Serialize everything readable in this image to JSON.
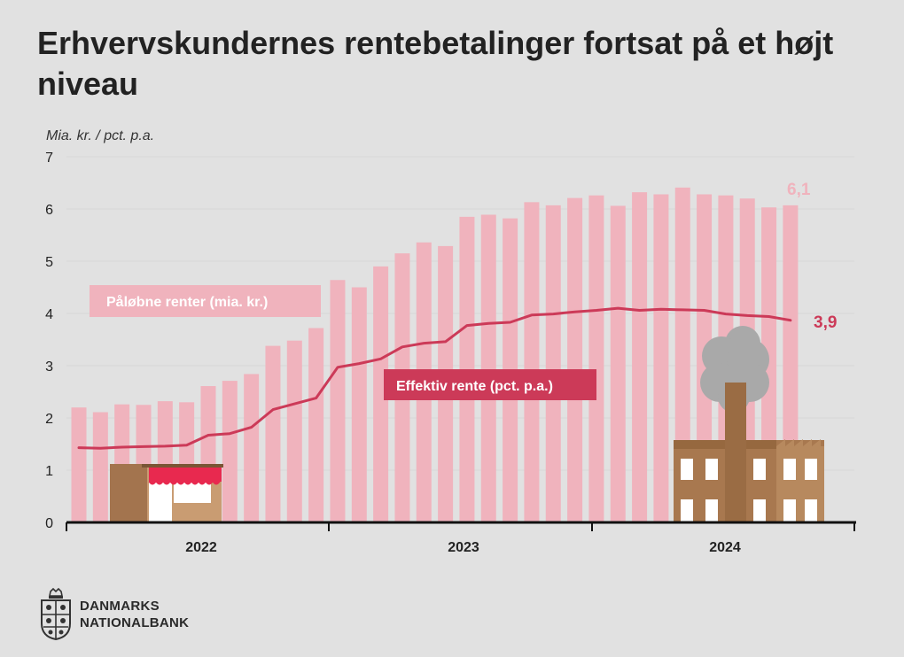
{
  "title": "Erhvervskundernes rentebetalinger fortsat på et højt niveau",
  "chart_data": {
    "type": "bar",
    "title": "Erhvervskundernes rentebetalinger fortsat på et højt niveau",
    "ylabel": "Mia. kr. / pct. p.a.",
    "ylim": [
      0,
      7
    ],
    "yticks": [
      "0",
      "1",
      "2",
      "3",
      "4",
      "5",
      "6",
      "7"
    ],
    "year_labels": [
      "2022",
      "2023",
      "2024"
    ],
    "months_count": 34,
    "series": [
      {
        "name": "Påløbne renter (mia. kr.)",
        "kind": "bar",
        "color": "#f0b3bd",
        "values": [
          2.2,
          2.11,
          2.26,
          2.25,
          2.32,
          2.3,
          2.61,
          2.71,
          2.84,
          3.38,
          3.48,
          3.72,
          4.64,
          4.5,
          4.9,
          5.15,
          5.36,
          5.29,
          5.85,
          5.89,
          5.82,
          6.13,
          6.07,
          6.21,
          6.26,
          6.06,
          6.32,
          6.28,
          6.41,
          6.28,
          6.26,
          6.2,
          6.03,
          6.07
        ]
      },
      {
        "name": "Effektiv rente (pct. p.a.)",
        "kind": "line",
        "color": "#cc3a58",
        "values": [
          1.43,
          1.42,
          1.44,
          1.45,
          1.46,
          1.48,
          1.67,
          1.7,
          1.82,
          2.16,
          2.27,
          2.38,
          2.97,
          3.04,
          3.13,
          3.36,
          3.43,
          3.46,
          3.77,
          3.81,
          3.83,
          3.97,
          3.99,
          4.03,
          4.06,
          4.1,
          4.06,
          4.08,
          4.07,
          4.06,
          3.99,
          3.96,
          3.94,
          3.87
        ]
      }
    ],
    "end_labels": {
      "bars": "6,1",
      "line": "3,9"
    },
    "legend": {
      "bars_label": "Påløbne renter (mia. kr.)",
      "line_label": "Effektiv rente (pct. p.a.)"
    }
  },
  "logo": {
    "line1": "DANMARKS",
    "line2": "NATIONALBANK"
  },
  "colors": {
    "background": "#e1e1e1",
    "bar": "#f0b3bd",
    "line": "#cc3a58",
    "text": "#222222"
  }
}
